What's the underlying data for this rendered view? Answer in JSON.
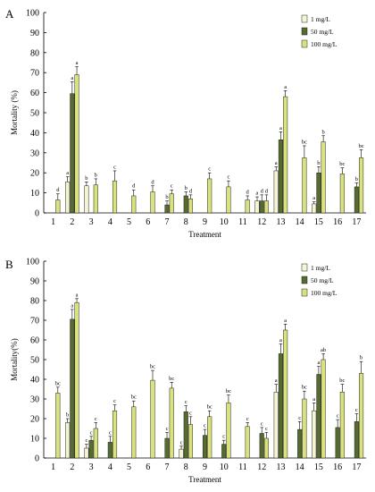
{
  "chart_data": [
    {
      "panel_label": "A",
      "type": "bar",
      "xlabel": "Treatment",
      "ylabel": "Mortality (%)",
      "ylim": [
        0,
        100
      ],
      "yticks": [
        0,
        10,
        20,
        30,
        40,
        50,
        60,
        70,
        80,
        90,
        100
      ],
      "grid": false,
      "legend_position": "top-right",
      "categories": [
        "1",
        "2",
        "3",
        "4",
        "5",
        "6",
        "7",
        "8",
        "9",
        "10",
        "11",
        "12",
        "13",
        "14",
        "15",
        "16",
        "17"
      ],
      "series": [
        {
          "name": "1 mg/L",
          "color": "#f3f5d4",
          "values": [
            null,
            15.5,
            13.5,
            null,
            null,
            null,
            null,
            null,
            null,
            null,
            null,
            6,
            21,
            null,
            4.5,
            null,
            null
          ],
          "errors": [
            0,
            2.5,
            2,
            0,
            0,
            0,
            0,
            0,
            0,
            0,
            0,
            2,
            2,
            0,
            1,
            0,
            0
          ],
          "letters": [
            "",
            "a",
            "b",
            "",
            "",
            "",
            "",
            "",
            "",
            "",
            "",
            "a",
            "a",
            "",
            "a",
            "",
            ""
          ]
        },
        {
          "name": "50 mg/L",
          "color": "#556b2f",
          "values": [
            null,
            59.5,
            null,
            null,
            null,
            null,
            4,
            8.5,
            null,
            null,
            null,
            6,
            36.5,
            null,
            20,
            null,
            13
          ],
          "errors": [
            0,
            6,
            0,
            0,
            0,
            0,
            2,
            2,
            0,
            0,
            0,
            3,
            4,
            0,
            3,
            0,
            2
          ],
          "letters": [
            "",
            "a",
            "",
            "",
            "",
            "",
            "b",
            "b",
            "",
            "",
            "",
            "d",
            "a",
            "",
            "b",
            "",
            "b"
          ]
        },
        {
          "name": "100 mg/L",
          "color": "#d9e27c",
          "values": [
            6.5,
            69,
            14,
            16,
            8.5,
            10.5,
            9.5,
            7,
            17,
            13,
            6.5,
            6,
            58,
            27.5,
            35.5,
            19.5,
            27.5
          ],
          "errors": [
            3,
            4,
            3,
            5,
            3,
            3,
            2,
            2,
            3,
            3,
            2,
            3,
            3,
            6,
            3,
            3,
            4
          ],
          "letters": [
            "d",
            "a",
            "b",
            "c",
            "d",
            "d",
            "c",
            "d",
            "c",
            "c",
            "d",
            "d",
            "a",
            "bc",
            "b",
            "bc",
            "bc"
          ]
        }
      ]
    },
    {
      "panel_label": "B",
      "type": "bar",
      "xlabel": "Treatment",
      "ylabel": "Mortality(%)",
      "ylim": [
        0,
        100
      ],
      "yticks": [
        0,
        10,
        20,
        30,
        40,
        50,
        60,
        70,
        80,
        90,
        100
      ],
      "grid": false,
      "legend_position": "top-right",
      "categories": [
        "1",
        "2",
        "3",
        "4",
        "5",
        "6",
        "7",
        "8",
        "9",
        "10",
        "11",
        "12",
        "13",
        "14",
        "15",
        "16",
        "17"
      ],
      "series": [
        {
          "name": "1 mg/L",
          "color": "#f3f5d4",
          "values": [
            null,
            18,
            5,
            null,
            null,
            null,
            null,
            4.5,
            null,
            null,
            null,
            null,
            33.5,
            null,
            24,
            null,
            null
          ],
          "errors": [
            0,
            2,
            2,
            0,
            0,
            0,
            0,
            1.5,
            0,
            0,
            0,
            0,
            4,
            0,
            4,
            0,
            0
          ],
          "letters": [
            "",
            "b",
            "c",
            "",
            "",
            "",
            "",
            "c",
            "",
            "",
            "",
            "",
            "a",
            "",
            "a",
            "",
            ""
          ]
        },
        {
          "name": "50 mg/L",
          "color": "#556b2f",
          "values": [
            null,
            70.5,
            9,
            8,
            null,
            null,
            10,
            23.5,
            11.5,
            7,
            null,
            12.5,
            53,
            14.5,
            42.5,
            15.5,
            18.5
          ],
          "errors": [
            0,
            5,
            2,
            3,
            0,
            0,
            3,
            3,
            3,
            2,
            0,
            3,
            5,
            4,
            4,
            4,
            4
          ],
          "letters": [
            "",
            "a",
            "c",
            "c",
            "",
            "",
            "c",
            "c",
            "c",
            "c",
            "",
            "c",
            "a",
            "c",
            "a",
            "c",
            "c"
          ]
        },
        {
          "name": "100 mg/L",
          "color": "#d9e27c",
          "values": [
            33,
            79,
            15,
            24,
            26,
            39.5,
            35.5,
            17,
            21,
            28,
            16,
            10,
            65,
            30,
            50,
            33.5,
            43
          ],
          "errors": [
            3,
            2,
            3,
            3,
            3,
            5,
            3,
            4,
            3,
            4,
            2,
            3,
            3,
            4,
            3,
            4,
            6
          ],
          "letters": [
            "bc",
            "a",
            "c",
            "c",
            "bc",
            "bc",
            "bc",
            "c",
            "bc",
            "bc",
            "c",
            "c",
            "a",
            "bc",
            "ab",
            "bc",
            "b"
          ]
        }
      ]
    }
  ]
}
